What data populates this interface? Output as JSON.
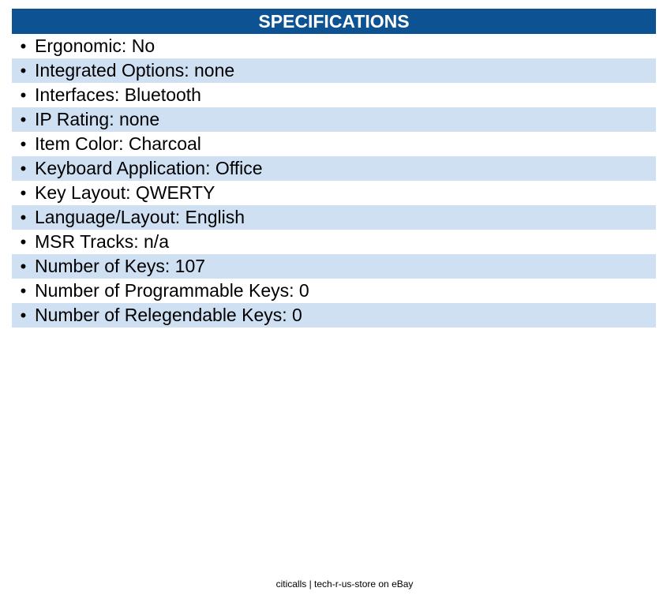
{
  "header": {
    "title": "SPECIFICATIONS"
  },
  "specs": [
    "Ergonomic: No",
    "Integrated Options: none",
    "Interfaces: Bluetooth",
    "IP Rating: none",
    "Item Color: Charcoal",
    "Keyboard Application: Office",
    "Key Layout: QWERTY",
    "Language/Layout: English",
    "MSR Tracks: n/a",
    "Number of Keys: 107",
    "Number of Programmable Keys: 0",
    "Number of Relegendable Keys: 0"
  ],
  "bullet": "•",
  "footer": {
    "text": "citicalls | tech-r-us-store on eBay"
  },
  "colors": {
    "header_bg": "#0d5292",
    "alt_row_bg": "#cfe0f3"
  }
}
